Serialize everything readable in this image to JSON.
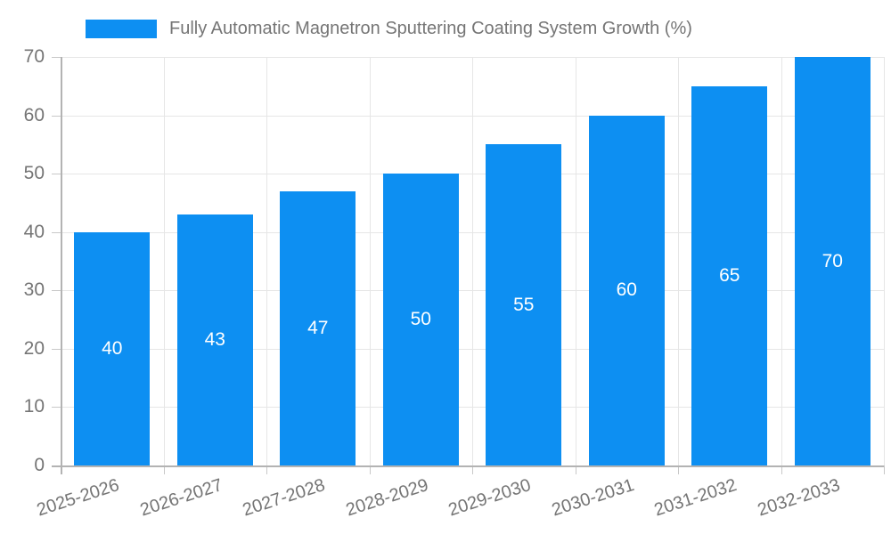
{
  "legend": {
    "label": "Fully Automatic Magnetron Sputtering Coating System Growth (%)"
  },
  "colors": {
    "bar": "#0d8ff2",
    "gridline": "#e6e6e6",
    "tick": "#c8c8c8",
    "axis": "#b3b3b3",
    "text": "#757575",
    "value_text": "#ffffff",
    "background": "#ffffff"
  },
  "chart_data": {
    "type": "bar",
    "title": "Fully Automatic Magnetron Sputtering Coating System Growth (%)",
    "categories": [
      "2025-2026",
      "2026-2027",
      "2027-2028",
      "2028-2029",
      "2029-2030",
      "2030-2031",
      "2031-2032",
      "2032-2033"
    ],
    "values": [
      40,
      43,
      47,
      50,
      55,
      60,
      65,
      70
    ],
    "xlabel": "",
    "ylabel": "",
    "ylim": [
      0,
      70
    ],
    "yticks": [
      0,
      10,
      20,
      30,
      40,
      50,
      60,
      70
    ],
    "grid": true,
    "legend_position": "top",
    "bar_value_labels": true,
    "x_tick_rotation_deg": -18
  }
}
